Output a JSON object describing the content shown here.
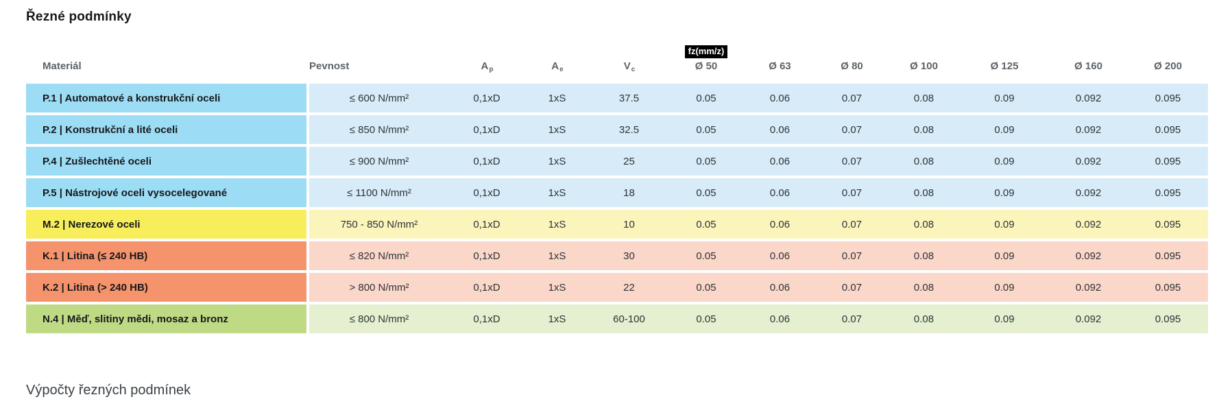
{
  "title": "Řezné podmínky",
  "footer": "Výpočty řezných podmínek",
  "table": {
    "headers": {
      "material": "Materiál",
      "pevnost": "Pevnost",
      "ap": {
        "base": "A",
        "sub": "p"
      },
      "ae": {
        "base": "A",
        "sub": "e"
      },
      "vc": {
        "base": "V",
        "sub": "c"
      },
      "fz_badge": "fz(mm/z)",
      "diameters": [
        "Ø 50",
        "Ø 63",
        "Ø 80",
        "Ø 100",
        "Ø 125",
        "Ø 160",
        "Ø 200"
      ]
    },
    "group_colors": {
      "steel": {
        "label": "#9CDCF4",
        "data": "#D7ECF8"
      },
      "stainless": {
        "label": "#F8EE5C",
        "data": "#FBF5BC"
      },
      "cast_iron": {
        "label": "#F5936C",
        "data": "#FAD7C9"
      },
      "nonferrous": {
        "label": "#BFDA85",
        "data": "#E4F0D0"
      }
    },
    "rows": [
      {
        "group": "steel",
        "material": "P.1 | Automatové a konstrukční oceli",
        "pevnost": "≤ 600 N/mm²",
        "ap": "0,1xD",
        "ae": "1xS",
        "vc": "37.5",
        "fz": [
          "0.05",
          "0.06",
          "0.07",
          "0.08",
          "0.09",
          "0.092",
          "0.095"
        ]
      },
      {
        "group": "steel",
        "material": "P.2 | Konstrukční a lité oceli",
        "pevnost": "≤ 850 N/mm²",
        "ap": "0,1xD",
        "ae": "1xS",
        "vc": "32.5",
        "fz": [
          "0.05",
          "0.06",
          "0.07",
          "0.08",
          "0.09",
          "0.092",
          "0.095"
        ]
      },
      {
        "group": "steel",
        "material": "P.4 | Zušlechtěné oceli",
        "pevnost": "≤ 900 N/mm²",
        "ap": "0,1xD",
        "ae": "1xS",
        "vc": "25",
        "fz": [
          "0.05",
          "0.06",
          "0.07",
          "0.08",
          "0.09",
          "0.092",
          "0.095"
        ]
      },
      {
        "group": "steel",
        "material": "P.5 | Nástrojové oceli vysocelegované",
        "pevnost": "≤ 1100 N/mm²",
        "ap": "0,1xD",
        "ae": "1xS",
        "vc": "18",
        "fz": [
          "0.05",
          "0.06",
          "0.07",
          "0.08",
          "0.09",
          "0.092",
          "0.095"
        ]
      },
      {
        "group": "stainless",
        "material": "M.2 | Nerezové oceli",
        "pevnost": "750 - 850 N/mm²",
        "ap": "0,1xD",
        "ae": "1xS",
        "vc": "10",
        "fz": [
          "0.05",
          "0.06",
          "0.07",
          "0.08",
          "0.09",
          "0.092",
          "0.095"
        ]
      },
      {
        "group": "cast_iron",
        "material": "K.1 | Litina (≤ 240 HB)",
        "pevnost": "≤ 820 N/mm²",
        "ap": "0,1xD",
        "ae": "1xS",
        "vc": "30",
        "fz": [
          "0.05",
          "0.06",
          "0.07",
          "0.08",
          "0.09",
          "0.092",
          "0.095"
        ]
      },
      {
        "group": "cast_iron",
        "material": "K.2 | Litina (> 240 HB)",
        "pevnost": "> 800 N/mm²",
        "ap": "0,1xD",
        "ae": "1xS",
        "vc": "22",
        "fz": [
          "0.05",
          "0.06",
          "0.07",
          "0.08",
          "0.09",
          "0.092",
          "0.095"
        ]
      },
      {
        "group": "nonferrous",
        "material": "N.4 | Měď, slitiny mědi, mosaz a bronz",
        "pevnost": "≤ 800 N/mm²",
        "ap": "0,1xD",
        "ae": "1xS",
        "vc": "60-100",
        "fz": [
          "0.05",
          "0.06",
          "0.07",
          "0.08",
          "0.09",
          "0.092",
          "0.095"
        ]
      }
    ]
  }
}
